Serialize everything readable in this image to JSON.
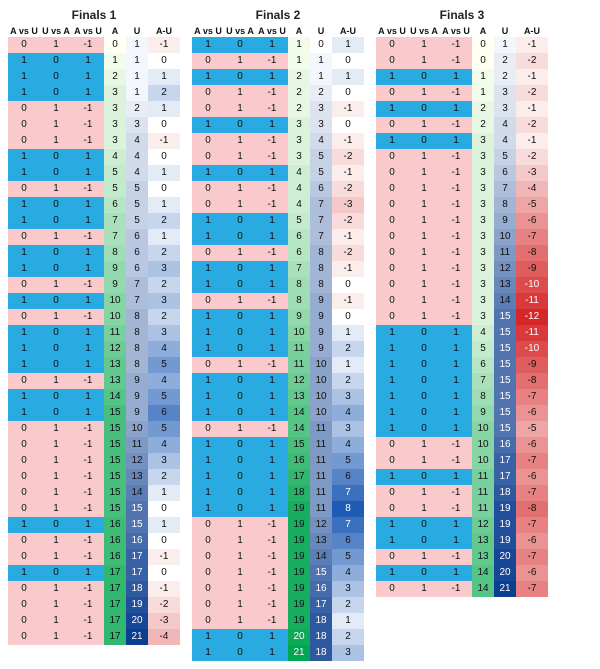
{
  "colors": {
    "bg": "#ffffff",
    "title": "#222222",
    "header": "#111111",
    "cell_text": "#111111",
    "cell_text_light": "#ffffff",
    "avs_zero": "#f9c9cc",
    "avs_one": "#29abe2"
  },
  "typography": {
    "font_family": "Arial, Helvetica, sans-serif",
    "title_fontsize": 12,
    "header_fontsize": 9,
    "cell_fontsize": 10
  },
  "A_palette": {
    "min": 0,
    "max": 21,
    "start": "#fffff2",
    "end": "#00a651"
  },
  "U_palette": {
    "min": 0,
    "max": 21,
    "start": "#ffffff",
    "end": "#0b3d91"
  },
  "AU_palette": {
    "neg_start": "#ffffff",
    "neg_end": "#d62728",
    "neg_min": 0,
    "neg_max": 12,
    "pos_start": "#ffffff",
    "pos_end": "#1f5bb5",
    "pos_min": 0,
    "pos_max": 8
  },
  "avs_cols": 3,
  "panels": [
    {
      "title": "Finals 1",
      "headers_avs": [
        "A vs U",
        "U vs A",
        "A vs U"
      ],
      "headers_trail": [
        "A",
        "U",
        "A-U"
      ],
      "rows": [
        {
          "avs": [
            0,
            1,
            -1
          ],
          "A": 0,
          "U": 1,
          "AU": -1
        },
        {
          "avs": [
            1,
            0,
            1
          ],
          "A": 1,
          "U": 1,
          "AU": 0
        },
        {
          "avs": [
            1,
            0,
            1
          ],
          "A": 2,
          "U": 1,
          "AU": 1
        },
        {
          "avs": [
            1,
            0,
            1
          ],
          "A": 3,
          "U": 1,
          "AU": 2
        },
        {
          "avs": [
            0,
            1,
            -1
          ],
          "A": 3,
          "U": 2,
          "AU": 1
        },
        {
          "avs": [
            0,
            1,
            -1
          ],
          "A": 3,
          "U": 3,
          "AU": 0
        },
        {
          "avs": [
            0,
            1,
            -1
          ],
          "A": 3,
          "U": 4,
          "AU": -1
        },
        {
          "avs": [
            1,
            0,
            1
          ],
          "A": 4,
          "U": 4,
          "AU": 0
        },
        {
          "avs": [
            1,
            0,
            1
          ],
          "A": 5,
          "U": 4,
          "AU": 1
        },
        {
          "avs": [
            0,
            1,
            -1
          ],
          "A": 5,
          "U": 5,
          "AU": 0
        },
        {
          "avs": [
            1,
            0,
            1
          ],
          "A": 6,
          "U": 5,
          "AU": 1
        },
        {
          "avs": [
            1,
            0,
            1
          ],
          "A": 7,
          "U": 5,
          "AU": 2
        },
        {
          "avs": [
            0,
            1,
            -1
          ],
          "A": 7,
          "U": 6,
          "AU": 1
        },
        {
          "avs": [
            1,
            0,
            1
          ],
          "A": 8,
          "U": 6,
          "AU": 2
        },
        {
          "avs": [
            1,
            0,
            1
          ],
          "A": 9,
          "U": 6,
          "AU": 3
        },
        {
          "avs": [
            0,
            1,
            -1
          ],
          "A": 9,
          "U": 7,
          "AU": 2
        },
        {
          "avs": [
            1,
            0,
            1
          ],
          "A": 10,
          "U": 7,
          "AU": 3
        },
        {
          "avs": [
            0,
            1,
            -1
          ],
          "A": 10,
          "U": 8,
          "AU": 2
        },
        {
          "avs": [
            1,
            0,
            1
          ],
          "A": 11,
          "U": 8,
          "AU": 3
        },
        {
          "avs": [
            1,
            0,
            1
          ],
          "A": 12,
          "U": 8,
          "AU": 4
        },
        {
          "avs": [
            1,
            0,
            1
          ],
          "A": 13,
          "U": 8,
          "AU": 5
        },
        {
          "avs": [
            0,
            1,
            -1
          ],
          "A": 13,
          "U": 9,
          "AU": 4
        },
        {
          "avs": [
            1,
            0,
            1
          ],
          "A": 14,
          "U": 9,
          "AU": 5
        },
        {
          "avs": [
            1,
            0,
            1
          ],
          "A": 15,
          "U": 9,
          "AU": 6
        },
        {
          "avs": [
            0,
            1,
            -1
          ],
          "A": 15,
          "U": 10,
          "AU": 5
        },
        {
          "avs": [
            0,
            1,
            -1
          ],
          "A": 15,
          "U": 11,
          "AU": 4
        },
        {
          "avs": [
            0,
            1,
            -1
          ],
          "A": 15,
          "U": 12,
          "AU": 3
        },
        {
          "avs": [
            0,
            1,
            -1
          ],
          "A": 15,
          "U": 13,
          "AU": 2
        },
        {
          "avs": [
            0,
            1,
            -1
          ],
          "A": 15,
          "U": 14,
          "AU": 1
        },
        {
          "avs": [
            0,
            1,
            -1
          ],
          "A": 15,
          "U": 15,
          "AU": 0
        },
        {
          "avs": [
            1,
            0,
            1
          ],
          "A": 16,
          "U": 15,
          "AU": 1
        },
        {
          "avs": [
            0,
            1,
            -1
          ],
          "A": 16,
          "U": 16,
          "AU": 0
        },
        {
          "avs": [
            0,
            1,
            -1
          ],
          "A": 16,
          "U": 17,
          "AU": -1
        },
        {
          "avs": [
            1,
            0,
            1
          ],
          "A": 17,
          "U": 17,
          "AU": 0
        },
        {
          "avs": [
            0,
            1,
            -1
          ],
          "A": 17,
          "U": 18,
          "AU": -1
        },
        {
          "avs": [
            0,
            1,
            -1
          ],
          "A": 17,
          "U": 19,
          "AU": -2
        },
        {
          "avs": [
            0,
            1,
            -1
          ],
          "A": 17,
          "U": 20,
          "AU": -3
        },
        {
          "avs": [
            0,
            1,
            -1
          ],
          "A": 17,
          "U": 21,
          "AU": -4
        }
      ]
    },
    {
      "title": "Finals 2",
      "headers_avs": [
        "A vs U",
        "U vs A",
        "A vs U"
      ],
      "headers_trail": [
        "A",
        "U",
        "A-U"
      ],
      "rows": [
        {
          "avs": [
            1,
            0,
            1
          ],
          "A": 1,
          "U": 0,
          "AU": 1
        },
        {
          "avs": [
            0,
            1,
            -1
          ],
          "A": 1,
          "U": 1,
          "AU": 0
        },
        {
          "avs": [
            1,
            0,
            1
          ],
          "A": 2,
          "U": 1,
          "AU": 1
        },
        {
          "avs": [
            0,
            1,
            -1
          ],
          "A": 2,
          "U": 2,
          "AU": 0
        },
        {
          "avs": [
            0,
            1,
            -1
          ],
          "A": 2,
          "U": 3,
          "AU": -1
        },
        {
          "avs": [
            1,
            0,
            1
          ],
          "A": 3,
          "U": 3,
          "AU": 0
        },
        {
          "avs": [
            0,
            1,
            -1
          ],
          "A": 3,
          "U": 4,
          "AU": -1
        },
        {
          "avs": [
            0,
            1,
            -1
          ],
          "A": 3,
          "U": 5,
          "AU": -2
        },
        {
          "avs": [
            1,
            0,
            1
          ],
          "A": 4,
          "U": 5,
          "AU": -1
        },
        {
          "avs": [
            0,
            1,
            -1
          ],
          "A": 4,
          "U": 6,
          "AU": -2
        },
        {
          "avs": [
            0,
            1,
            -1
          ],
          "A": 4,
          "U": 7,
          "AU": -3
        },
        {
          "avs": [
            1,
            0,
            1
          ],
          "A": 5,
          "U": 7,
          "AU": -2
        },
        {
          "avs": [
            1,
            0,
            1
          ],
          "A": 6,
          "U": 7,
          "AU": -1
        },
        {
          "avs": [
            0,
            1,
            -1
          ],
          "A": 6,
          "U": 8,
          "AU": -2
        },
        {
          "avs": [
            1,
            0,
            1
          ],
          "A": 7,
          "U": 8,
          "AU": -1
        },
        {
          "avs": [
            1,
            0,
            1
          ],
          "A": 8,
          "U": 8,
          "AU": 0
        },
        {
          "avs": [
            0,
            1,
            -1
          ],
          "A": 8,
          "U": 9,
          "AU": -1
        },
        {
          "avs": [
            1,
            0,
            1
          ],
          "A": 9,
          "U": 9,
          "AU": 0
        },
        {
          "avs": [
            1,
            0,
            1
          ],
          "A": 10,
          "U": 9,
          "AU": 1
        },
        {
          "avs": [
            1,
            0,
            1
          ],
          "A": 11,
          "U": 9,
          "AU": 2
        },
        {
          "avs": [
            0,
            1,
            -1
          ],
          "A": 11,
          "U": 10,
          "AU": 1
        },
        {
          "avs": [
            1,
            0,
            1
          ],
          "A": 12,
          "U": 10,
          "AU": 2
        },
        {
          "avs": [
            1,
            0,
            1
          ],
          "A": 13,
          "U": 10,
          "AU": 3
        },
        {
          "avs": [
            1,
            0,
            1
          ],
          "A": 14,
          "U": 10,
          "AU": 4
        },
        {
          "avs": [
            0,
            1,
            -1
          ],
          "A": 14,
          "U": 11,
          "AU": 3
        },
        {
          "avs": [
            1,
            0,
            1
          ],
          "A": 15,
          "U": 11,
          "AU": 4
        },
        {
          "avs": [
            1,
            0,
            1
          ],
          "A": 16,
          "U": 11,
          "AU": 5
        },
        {
          "avs": [
            1,
            0,
            1
          ],
          "A": 17,
          "U": 11,
          "AU": 6
        },
        {
          "avs": [
            1,
            0,
            1
          ],
          "A": 18,
          "U": 11,
          "AU": 7
        },
        {
          "avs": [
            1,
            0,
            1
          ],
          "A": 19,
          "U": 11,
          "AU": 8
        },
        {
          "avs": [
            0,
            1,
            -1
          ],
          "A": 19,
          "U": 12,
          "AU": 7
        },
        {
          "avs": [
            0,
            1,
            -1
          ],
          "A": 19,
          "U": 13,
          "AU": 6
        },
        {
          "avs": [
            0,
            1,
            -1
          ],
          "A": 19,
          "U": 14,
          "AU": 5
        },
        {
          "avs": [
            0,
            1,
            -1
          ],
          "A": 19,
          "U": 15,
          "AU": 4
        },
        {
          "avs": [
            0,
            1,
            -1
          ],
          "A": 19,
          "U": 16,
          "AU": 3
        },
        {
          "avs": [
            0,
            1,
            -1
          ],
          "A": 19,
          "U": 17,
          "AU": 2
        },
        {
          "avs": [
            0,
            1,
            -1
          ],
          "A": 19,
          "U": 18,
          "AU": 1
        },
        {
          "avs": [
            1,
            0,
            1
          ],
          "A": 20,
          "U": 18,
          "AU": 2
        },
        {
          "avs": [
            1,
            0,
            1
          ],
          "A": 21,
          "U": 18,
          "AU": 3
        }
      ]
    },
    {
      "title": "Finals 3",
      "headers_avs": [
        "A vs U",
        "U vs A",
        "A vs U"
      ],
      "headers_trail": [
        "A",
        "U",
        "A-U"
      ],
      "rows": [
        {
          "avs": [
            0,
            1,
            -1
          ],
          "A": 0,
          "U": 1,
          "AU": -1
        },
        {
          "avs": [
            0,
            1,
            -1
          ],
          "A": 0,
          "U": 2,
          "AU": -2
        },
        {
          "avs": [
            1,
            0,
            1
          ],
          "A": 1,
          "U": 2,
          "AU": -1
        },
        {
          "avs": [
            0,
            1,
            -1
          ],
          "A": 1,
          "U": 3,
          "AU": -2
        },
        {
          "avs": [
            1,
            0,
            1
          ],
          "A": 2,
          "U": 3,
          "AU": -1
        },
        {
          "avs": [
            0,
            1,
            -1
          ],
          "A": 2,
          "U": 4,
          "AU": -2
        },
        {
          "avs": [
            1,
            0,
            1
          ],
          "A": 3,
          "U": 4,
          "AU": -1
        },
        {
          "avs": [
            0,
            1,
            -1
          ],
          "A": 3,
          "U": 5,
          "AU": -2
        },
        {
          "avs": [
            0,
            1,
            -1
          ],
          "A": 3,
          "U": 6,
          "AU": -3
        },
        {
          "avs": [
            0,
            1,
            -1
          ],
          "A": 3,
          "U": 7,
          "AU": -4
        },
        {
          "avs": [
            0,
            1,
            -1
          ],
          "A": 3,
          "U": 8,
          "AU": -5
        },
        {
          "avs": [
            0,
            1,
            -1
          ],
          "A": 3,
          "U": 9,
          "AU": -6
        },
        {
          "avs": [
            0,
            1,
            -1
          ],
          "A": 3,
          "U": 10,
          "AU": -7
        },
        {
          "avs": [
            0,
            1,
            -1
          ],
          "A": 3,
          "U": 11,
          "AU": -8
        },
        {
          "avs": [
            0,
            1,
            -1
          ],
          "A": 3,
          "U": 12,
          "AU": -9
        },
        {
          "avs": [
            0,
            1,
            -1
          ],
          "A": 3,
          "U": 13,
          "AU": -10
        },
        {
          "avs": [
            0,
            1,
            -1
          ],
          "A": 3,
          "U": 14,
          "AU": -11
        },
        {
          "avs": [
            0,
            1,
            -1
          ],
          "A": 3,
          "U": 15,
          "AU": -12
        },
        {
          "avs": [
            1,
            0,
            1
          ],
          "A": 4,
          "U": 15,
          "AU": -11
        },
        {
          "avs": [
            1,
            0,
            1
          ],
          "A": 5,
          "U": 15,
          "AU": -10
        },
        {
          "avs": [
            1,
            0,
            1
          ],
          "A": 6,
          "U": 15,
          "AU": -9
        },
        {
          "avs": [
            1,
            0,
            1
          ],
          "A": 7,
          "U": 15,
          "AU": -8
        },
        {
          "avs": [
            1,
            0,
            1
          ],
          "A": 8,
          "U": 15,
          "AU": -7
        },
        {
          "avs": [
            1,
            0,
            1
          ],
          "A": 9,
          "U": 15,
          "AU": -6
        },
        {
          "avs": [
            1,
            0,
            1
          ],
          "A": 10,
          "U": 15,
          "AU": -5
        },
        {
          "avs": [
            0,
            1,
            -1
          ],
          "A": 10,
          "U": 16,
          "AU": -6
        },
        {
          "avs": [
            0,
            1,
            -1
          ],
          "A": 10,
          "U": 17,
          "AU": -7
        },
        {
          "avs": [
            1,
            0,
            1
          ],
          "A": 11,
          "U": 17,
          "AU": -6
        },
        {
          "avs": [
            0,
            1,
            -1
          ],
          "A": 11,
          "U": 18,
          "AU": -7
        },
        {
          "avs": [
            0,
            1,
            -1
          ],
          "A": 11,
          "U": 19,
          "AU": -8
        },
        {
          "avs": [
            1,
            0,
            1
          ],
          "A": 12,
          "U": 19,
          "AU": -7
        },
        {
          "avs": [
            1,
            0,
            1
          ],
          "A": 13,
          "U": 19,
          "AU": -6
        },
        {
          "avs": [
            0,
            1,
            -1
          ],
          "A": 13,
          "U": 20,
          "AU": -7
        },
        {
          "avs": [
            1,
            0,
            1
          ],
          "A": 14,
          "U": 20,
          "AU": -6
        },
        {
          "avs": [
            0,
            1,
            -1
          ],
          "A": 14,
          "U": 21,
          "AU": -7
        }
      ]
    }
  ]
}
